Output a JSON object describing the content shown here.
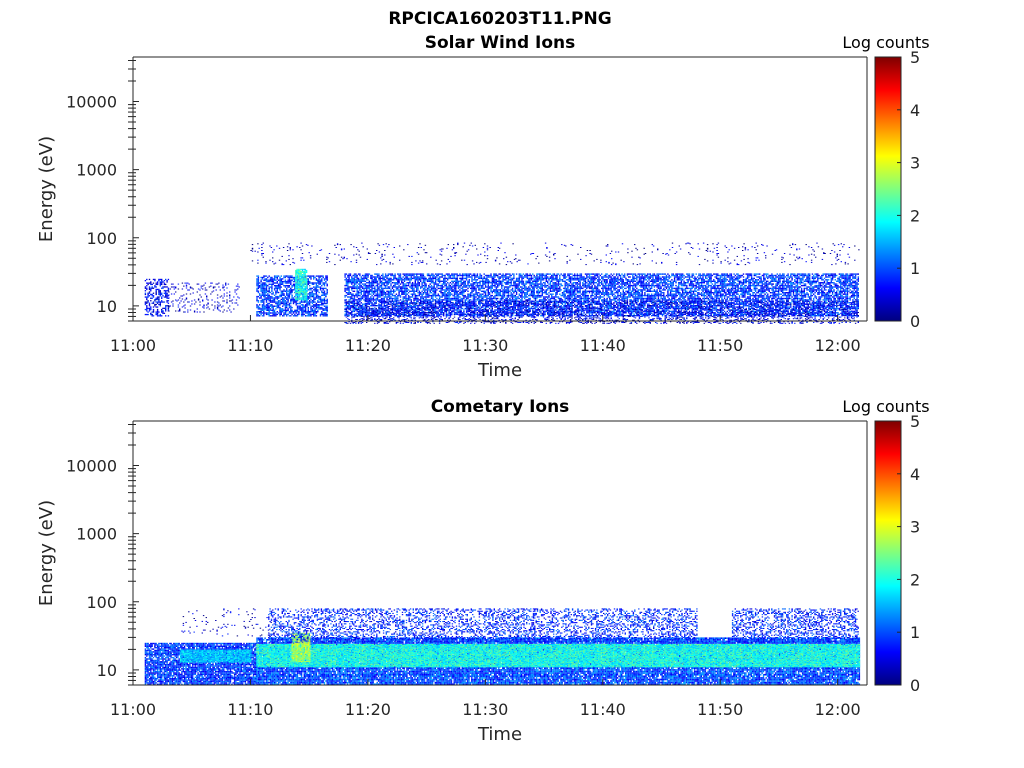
{
  "figure": {
    "title": "RPCICA160203T11.PNG"
  },
  "colormap": {
    "stops": [
      "#00007f",
      "#0000ff",
      "#007fff",
      "#00ffff",
      "#7fff7f",
      "#ffff00",
      "#ff7f00",
      "#ff0000",
      "#7f0000"
    ]
  },
  "chart_data": [
    {
      "type": "heatmap",
      "title": "Solar Wind Ions",
      "xlabel": "Time",
      "ylabel": "Energy (eV)",
      "x_unit": "minutes after 11:00",
      "xlim": [
        0,
        62.5
      ],
      "ylim": [
        6,
        45000
      ],
      "yscale": "log",
      "x_ticks": [
        "11:00",
        "11:10",
        "11:20",
        "11:30",
        "11:40",
        "11:50",
        "12:00"
      ],
      "y_ticks": [
        "10",
        "100",
        "1000",
        "10000"
      ],
      "colorbar": {
        "label": "Log counts",
        "range": [
          0,
          5
        ],
        "ticks": [
          "0",
          "1",
          "2",
          "3",
          "4",
          "5"
        ]
      },
      "regions": [
        {
          "t": [
            1,
            3
          ],
          "e": [
            7,
            25
          ],
          "log_counts": 0.6,
          "density": 0.45
        },
        {
          "t": [
            3,
            9
          ],
          "e": [
            8,
            22
          ],
          "log_counts": 0.4,
          "density": 0.12
        },
        {
          "t": [
            10.5,
            16.5
          ],
          "e": [
            7,
            28
          ],
          "log_counts": 0.9,
          "density": 0.65
        },
        {
          "t": [
            13.8,
            14.8
          ],
          "e": [
            12,
            35
          ],
          "log_counts": 2.0,
          "density": 0.9
        },
        {
          "t": [
            18,
            61.8
          ],
          "e": [
            7,
            30
          ],
          "log_counts": 0.9,
          "density": 0.7
        },
        {
          "t": [
            18,
            61.8
          ],
          "e": [
            5.5,
            12
          ],
          "log_counts": 0.5,
          "density": 0.25
        },
        {
          "t": [
            10,
            62
          ],
          "e": [
            40,
            85
          ],
          "log_counts": 0.3,
          "density": 0.03
        }
      ]
    },
    {
      "type": "heatmap",
      "title": "Cometary Ions",
      "xlabel": "Time",
      "ylabel": "Energy (eV)",
      "x_unit": "minutes after 11:00",
      "xlim": [
        0,
        62.5
      ],
      "ylim": [
        6,
        45000
      ],
      "yscale": "log",
      "x_ticks": [
        "11:00",
        "11:10",
        "11:20",
        "11:30",
        "11:40",
        "11:50",
        "12:00"
      ],
      "y_ticks": [
        "10",
        "100",
        "1000",
        "10000"
      ],
      "colorbar": {
        "label": "Log counts",
        "range": [
          0,
          5
        ],
        "ticks": [
          "0",
          "1",
          "2",
          "3",
          "4",
          "5"
        ]
      },
      "regions": [
        {
          "t": [
            1,
            10.5
          ],
          "e": [
            6,
            25
          ],
          "log_counts": 0.9,
          "density": 0.85
        },
        {
          "t": [
            4,
            10
          ],
          "e": [
            13,
            20
          ],
          "log_counts": 1.6,
          "density": 0.8
        },
        {
          "t": [
            10.5,
            61.8
          ],
          "e": [
            6,
            30
          ],
          "log_counts": 1.0,
          "density": 0.9
        },
        {
          "t": [
            10.5,
            61.8
          ],
          "e": [
            11,
            24
          ],
          "log_counts": 2.0,
          "density": 0.95
        },
        {
          "t": [
            13.5,
            15
          ],
          "e": [
            13,
            35
          ],
          "log_counts": 2.7,
          "density": 0.9
        },
        {
          "t": [
            11.5,
            48
          ],
          "e": [
            25,
            80
          ],
          "log_counts": 0.8,
          "density": 0.35
        },
        {
          "t": [
            51,
            61.8
          ],
          "e": [
            25,
            80
          ],
          "log_counts": 0.8,
          "density": 0.4
        },
        {
          "t": [
            4,
            12
          ],
          "e": [
            30,
            80
          ],
          "log_counts": 0.4,
          "density": 0.04
        }
      ]
    }
  ]
}
